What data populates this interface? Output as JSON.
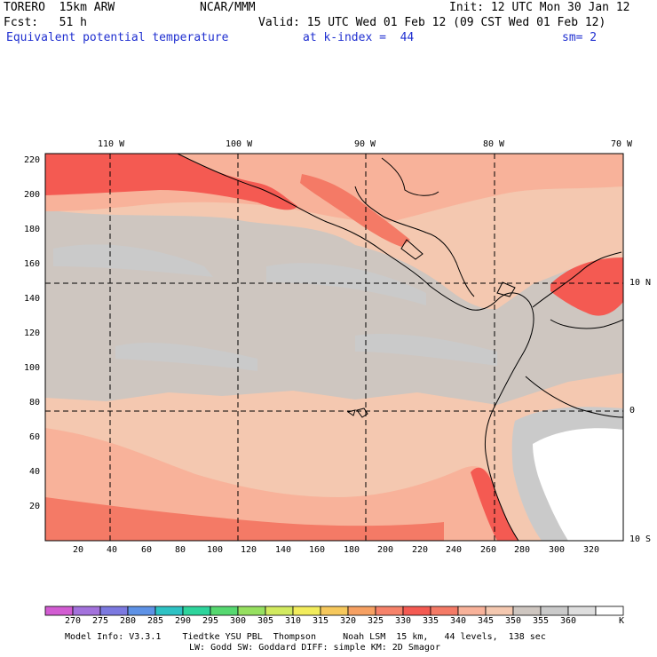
{
  "header": {
    "model": "TORERO  15km ARW",
    "center": "NCAR/MMM",
    "init": "Init: 12 UTC Mon 30 Jan 12",
    "fcst": "Fcst:   51 h",
    "valid": "Valid: 15 UTC Wed 01 Feb 12 (09 CST Wed 01 Feb 12)",
    "field": "Equivalent potential temperature",
    "level": "at k-index =  44",
    "smooth": "sm= 2"
  },
  "map": {
    "lon_labels": [
      "110 W",
      "100 W",
      "90 W",
      "80 W",
      "70 W"
    ],
    "lat_labels_right": [
      "10 N",
      "0",
      "10 S"
    ],
    "y_ticks": [
      "220",
      "200",
      "180",
      "160",
      "140",
      "120",
      "100",
      "80",
      "60",
      "40",
      "20"
    ],
    "x_ticks": [
      "20",
      "40",
      "60",
      "80",
      "100",
      "120",
      "140",
      "160",
      "180",
      "200",
      "220",
      "240",
      "260",
      "280",
      "300",
      "320"
    ]
  },
  "colorbar": {
    "levels": [
      "270",
      "275",
      "280",
      "285",
      "290",
      "295",
      "300",
      "305",
      "310",
      "315",
      "320",
      "325",
      "330",
      "335",
      "340",
      "345",
      "350",
      "355",
      "360"
    ],
    "unit": "K",
    "colors": [
      "#d25cd2",
      "#a372dc",
      "#7c79e0",
      "#5e92e6",
      "#2ec2c4",
      "#2ed49c",
      "#56d870",
      "#96e060",
      "#d2ea60",
      "#f2ec5c",
      "#f6c85c",
      "#f6a062",
      "#f6826a",
      "#f45a52",
      "#f47a66",
      "#f8b29a",
      "#f4c8b0",
      "#cec6c0",
      "#cacaca",
      "#dedede",
      "#ffffff"
    ]
  },
  "footer": {
    "line1": "Model Info: V3.3.1    Tiedtke YSU PBL  Thompson     Noah LSM  15 km,   44 levels,  138 sec",
    "line2": "LW: Godd SW: Goddard DIFF: simple KM: 2D Smagor"
  }
}
